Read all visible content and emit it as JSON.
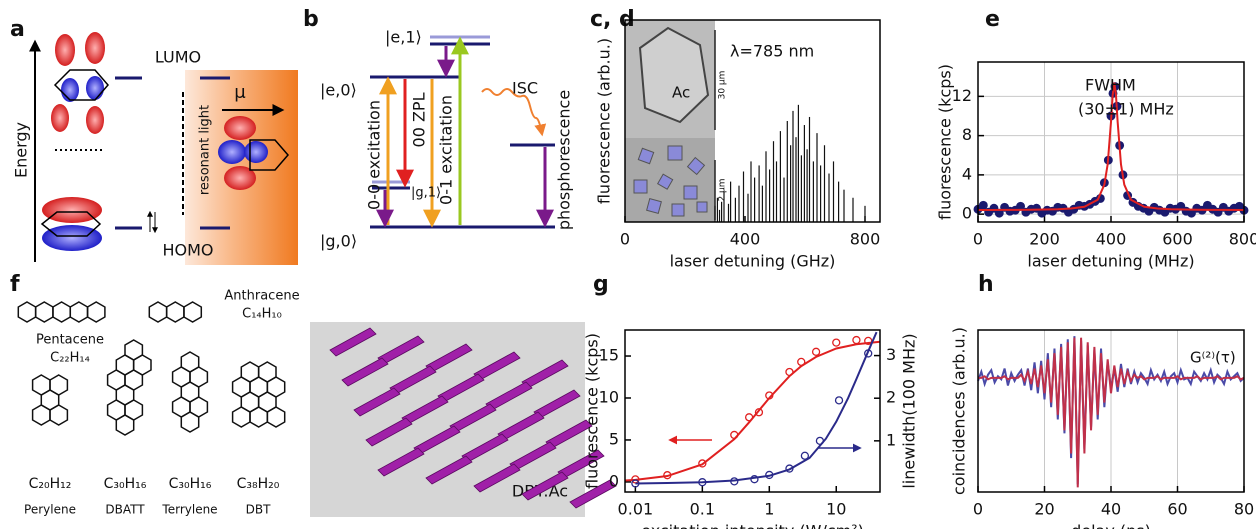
{
  "diagram_a": {
    "label": "a",
    "energy": "Energy",
    "lumo": "LUMO",
    "homo": "HOMO",
    "dipole": "μ",
    "light": "resonant light"
  },
  "diagram_b": {
    "label": "b",
    "e1": "|e,1⟩",
    "e0": "|e,0⟩",
    "g1": "|g,1⟩",
    "g0": "|g,0⟩",
    "excitation_00": "0-0 excitation",
    "zpl": "00 ZPL",
    "excitation_01": "0-1 excitation",
    "isc": "ISC",
    "phosphorescence": "phosphorescence"
  },
  "diagram_f": {
    "label": "f",
    "molecules": [
      {
        "name": "Pentacene",
        "formula": "C₂₂H₁₄"
      },
      {
        "name": "Anthracene",
        "formula": "C₁₄H₁₀"
      },
      {
        "name": "Perylene",
        "formula": "C₂₀H₁₂"
      },
      {
        "name": "DBATT",
        "formula": "C₃₀H₁₆"
      },
      {
        "name": "Terrylene",
        "formula": "C₃₀H₁₆"
      },
      {
        "name": "DBT",
        "formula": "C₃₈H₂₀"
      }
    ],
    "crystal": "DBT:Ac"
  },
  "chart_data": [
    {
      "type": "spectrum",
      "label": "c, d",
      "xlabel": "laser detuning (GHz)",
      "ylabel": "fluorescence (arb.u.)",
      "annotations": [
        "λ=785 nm",
        "Ac",
        "30 µm",
        "2 µm"
      ],
      "xlim": [
        0,
        850
      ],
      "xticks": [
        0,
        400,
        800
      ],
      "ylim": [
        0,
        1
      ],
      "grid": false,
      "series": [
        {
          "color": "#111111",
          "style": "sticks",
          "x": [
            300,
            308,
            315,
            322,
            330,
            345,
            352,
            368,
            380,
            395,
            410,
            420,
            432,
            447,
            458,
            470,
            482,
            495,
            505,
            518,
            530,
            541,
            552,
            560,
            570,
            578,
            588,
            598,
            607,
            615,
            628,
            640,
            652,
            665,
            680,
            695,
            712,
            730,
            760,
            800
          ],
          "values": [
            0.08,
            0.12,
            0.06,
            0.1,
            0.15,
            0.09,
            0.2,
            0.12,
            0.18,
            0.25,
            0.14,
            0.3,
            0.22,
            0.28,
            0.18,
            0.35,
            0.26,
            0.4,
            0.3,
            0.45,
            0.22,
            0.5,
            0.38,
            0.55,
            0.42,
            0.58,
            0.33,
            0.48,
            0.36,
            0.52,
            0.3,
            0.44,
            0.28,
            0.38,
            0.24,
            0.3,
            0.2,
            0.16,
            0.12,
            0.08
          ]
        }
      ]
    },
    {
      "type": "scatter",
      "label": "e",
      "xlabel": "laser detuning (MHz)",
      "ylabel": "fluorescence (kcps)",
      "annotations": [
        "FWHM",
        "(30±1) MHz"
      ],
      "xlim": [
        0,
        800
      ],
      "xticks": [
        0,
        200,
        400,
        600,
        800
      ],
      "ylim": [
        -0.8,
        15.5
      ],
      "yticks": [
        0,
        4,
        8,
        12
      ],
      "grid": true,
      "series": [
        {
          "color": "#1a1a6e",
          "style": "dots",
          "x": [
            0,
            16,
            32,
            48,
            64,
            80,
            96,
            112,
            128,
            144,
            160,
            176,
            192,
            208,
            224,
            240,
            256,
            272,
            288,
            304,
            320,
            336,
            352,
            368,
            380,
            392,
            400,
            406,
            412,
            418,
            426,
            436,
            450,
            466,
            482,
            498,
            514,
            530,
            546,
            562,
            578,
            594,
            610,
            626,
            642,
            658,
            674,
            690,
            706,
            722,
            738,
            754,
            770,
            786,
            800
          ],
          "values": [
            0.5,
            0.9,
            0.2,
            0.6,
            0.1,
            0.7,
            0.3,
            0.4,
            0.8,
            0.2,
            0.5,
            0.6,
            0.1,
            0.4,
            0.3,
            0.7,
            0.6,
            0.2,
            0.5,
            0.9,
            0.8,
            1.0,
            1.3,
            1.6,
            3.2,
            5.5,
            10.0,
            12.3,
            13.0,
            11.0,
            7.0,
            4.0,
            1.9,
            1.2,
            0.8,
            0.6,
            0.3,
            0.7,
            0.4,
            0.2,
            0.6,
            0.5,
            0.8,
            0.3,
            0.1,
            0.6,
            0.4,
            0.9,
            0.5,
            0.2,
            0.7,
            0.3,
            0.6,
            0.8,
            0.4
          ]
        },
        {
          "color": "#e02020",
          "style": "line",
          "x": [
            0,
            40,
            80,
            120,
            160,
            200,
            240,
            280,
            320,
            360,
            380,
            390,
            400,
            405,
            410,
            415,
            420,
            430,
            440,
            460,
            500,
            540,
            580,
            620,
            660,
            700,
            740,
            800
          ],
          "values": [
            0.42,
            0.42,
            0.43,
            0.43,
            0.45,
            0.47,
            0.5,
            0.57,
            0.75,
            1.47,
            3.0,
            5.08,
            9.4,
            12.1,
            13.4,
            12.1,
            9.4,
            5.08,
            3.0,
            1.47,
            0.75,
            0.57,
            0.5,
            0.47,
            0.45,
            0.43,
            0.43,
            0.42
          ]
        }
      ]
    },
    {
      "type": "scatter",
      "label": "g",
      "xlabel": "excitation intensity (W/cm²)",
      "ylabel": "fluorescence (kcps)",
      "y2label": "linewidth(100 MHz)",
      "xlog": true,
      "xlim": [
        0.007,
        45
      ],
      "xticks": [
        0.01,
        0.1,
        1,
        10
      ],
      "ylim": [
        -1.2,
        18.1
      ],
      "yticks": [
        0,
        5,
        10,
        15
      ],
      "y2lim": [
        -0.2,
        3.6
      ],
      "y2ticks": [
        1,
        2,
        3
      ],
      "grid": false,
      "series": [
        {
          "color": "#e02020",
          "style": "open-dots",
          "x": [
            0.01,
            0.03,
            0.1,
            0.3,
            0.5,
            0.7,
            1,
            2,
            3,
            5,
            10,
            20,
            30
          ],
          "values": [
            0.3,
            0.8,
            2.2,
            5.6,
            7.7,
            8.3,
            10.3,
            13.1,
            14.3,
            15.5,
            16.6,
            16.9,
            16.8
          ]
        },
        {
          "color": "#e02020",
          "style": "line",
          "x": [
            0.007,
            0.01,
            0.03,
            0.1,
            0.3,
            0.5,
            1,
            2,
            3,
            5,
            10,
            20,
            45
          ],
          "values": [
            0.17,
            0.24,
            0.7,
            2.1,
            5.1,
            7.1,
            10,
            12.6,
            13.8,
            14.9,
            15.9,
            16.4,
            16.7
          ]
        },
        {
          "color": "#2a2a8a",
          "style": "open-dots",
          "axis": "y2",
          "x": [
            0.01,
            0.1,
            0.3,
            0.6,
            1,
            2,
            3.4,
            5.7,
            11,
            30
          ],
          "values": [
            0.0,
            0.03,
            0.05,
            0.1,
            0.2,
            0.35,
            0.65,
            1.0,
            1.95,
            3.05
          ]
        },
        {
          "color": "#2a2a8a",
          "style": "line",
          "axis": "y2",
          "x": [
            0.01,
            0.03,
            0.1,
            0.3,
            1,
            2,
            4,
            7,
            10,
            15,
            20,
            30,
            40
          ],
          "values": [
            0,
            0.01,
            0.03,
            0.07,
            0.18,
            0.33,
            0.6,
            1.05,
            1.45,
            2.0,
            2.45,
            3.1,
            3.55
          ]
        }
      ]
    },
    {
      "type": "line",
      "label": "h",
      "xlabel": "delay (ns)",
      "ylabel": "coincidences (arb.u.)",
      "annotations": [
        "G⁽²⁾(τ)"
      ],
      "xlim": [
        0,
        80
      ],
      "xticks": [
        0,
        20,
        40,
        60,
        80
      ],
      "ylim": [
        0,
        1.05
      ],
      "grid": true,
      "series": [
        {
          "color": "#4a4aa8",
          "style": "line",
          "x": [
            0,
            1,
            2,
            3,
            4,
            5,
            6,
            7,
            8,
            9,
            10,
            11,
            12,
            13,
            14,
            15,
            16,
            17,
            18,
            19,
            20,
            21,
            22,
            23,
            24,
            25,
            26,
            27,
            28,
            29,
            30,
            31,
            32,
            33,
            34,
            35,
            36,
            37,
            38,
            39,
            40,
            41,
            42,
            43,
            44,
            45,
            46,
            47,
            48,
            49,
            50,
            51,
            52,
            53,
            54,
            55,
            56,
            57,
            58,
            59,
            60,
            61,
            62,
            63,
            64,
            65,
            66,
            67,
            68,
            69,
            70,
            71,
            72,
            73,
            74,
            75,
            76,
            77,
            78,
            79,
            80
          ],
          "values": [
            0.72,
            0.78,
            0.7,
            0.76,
            0.79,
            0.71,
            0.75,
            0.73,
            0.8,
            0.69,
            0.77,
            0.72,
            0.76,
            0.79,
            0.69,
            0.8,
            0.66,
            0.84,
            0.64,
            0.85,
            0.6,
            0.9,
            0.55,
            0.93,
            0.47,
            0.96,
            0.38,
            0.99,
            0.22,
            1.01,
            0.05,
            0.98,
            0.28,
            0.95,
            0.42,
            0.92,
            0.47,
            0.93,
            0.55,
            0.84,
            0.67,
            0.8,
            0.65,
            0.83,
            0.68,
            0.8,
            0.7,
            0.78,
            0.71,
            0.77,
            0.74,
            0.7,
            0.79,
            0.73,
            0.76,
            0.72,
            0.78,
            0.7,
            0.75,
            0.77,
            0.71,
            0.79,
            0.73,
            0.74,
            0.7,
            0.78,
            0.75,
            0.72,
            0.77,
            0.73,
            0.79,
            0.71,
            0.76,
            0.74,
            0.7,
            0.78,
            0.73,
            0.75,
            0.77,
            0.72,
            0.74
          ]
        },
        {
          "color": "#c0304a",
          "style": "line",
          "x": [
            0,
            1,
            2,
            3,
            4,
            5,
            6,
            7,
            8,
            9,
            10,
            11,
            12,
            13,
            14,
            15,
            16,
            17,
            18,
            19,
            20,
            21,
            22,
            23,
            24,
            25,
            26,
            27,
            28,
            29,
            30,
            31,
            32,
            33,
            34,
            35,
            36,
            37,
            38,
            39,
            40,
            41,
            42,
            43,
            44,
            45,
            46,
            47,
            48,
            49,
            50,
            51,
            52,
            53,
            54,
            55,
            56,
            57,
            58,
            59,
            60,
            61,
            62,
            63,
            64,
            65,
            66,
            67,
            68,
            69,
            70,
            71,
            72,
            73,
            74,
            75,
            76,
            77,
            78,
            79,
            80
          ],
          "values": [
            0.74,
            0.74,
            0.75,
            0.73,
            0.74,
            0.74,
            0.74,
            0.74,
            0.75,
            0.73,
            0.74,
            0.74,
            0.74,
            0.76,
            0.72,
            0.78,
            0.7,
            0.8,
            0.68,
            0.82,
            0.64,
            0.86,
            0.58,
            0.9,
            0.5,
            0.94,
            0.4,
            0.97,
            0.25,
            1.0,
            0.03,
            1.0,
            0.25,
            0.97,
            0.4,
            0.94,
            0.5,
            0.9,
            0.58,
            0.86,
            0.64,
            0.82,
            0.68,
            0.8,
            0.7,
            0.78,
            0.72,
            0.76,
            0.74,
            0.75,
            0.73,
            0.74,
            0.74,
            0.74,
            0.75,
            0.73,
            0.74,
            0.74,
            0.74,
            0.74,
            0.75,
            0.73,
            0.74,
            0.74,
            0.74,
            0.74,
            0.75,
            0.73,
            0.74,
            0.74,
            0.74,
            0.74,
            0.75,
            0.73,
            0.74,
            0.74,
            0.74,
            0.74,
            0.75,
            0.73,
            0.74
          ]
        }
      ]
    }
  ]
}
